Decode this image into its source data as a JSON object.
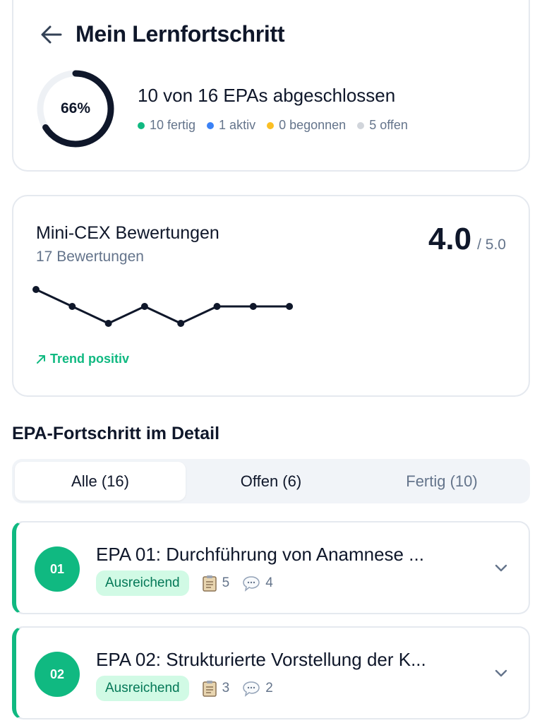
{
  "header": {
    "title": "Mein Lernfortschritt",
    "back_icon": "arrow-left-icon"
  },
  "progress": {
    "percent_label": "66%",
    "fraction": 0.66,
    "summary": "10 von 16 EPAs abgeschlossen",
    "legend": [
      {
        "label": "10 fertig",
        "color": "#10b981"
      },
      {
        "label": "1 aktiv",
        "color": "#3b82f6"
      },
      {
        "label": "0 begonnen",
        "color": "#fbbf24"
      },
      {
        "label": "5 offen",
        "color": "#d1d5db"
      }
    ]
  },
  "minicex": {
    "title": "Mini-CEX Bewertungen",
    "count": "17 Bewertungen",
    "score": "4.0",
    "score_max": "/ 5.0",
    "trend": "Trend positiv",
    "trend_icon": "arrow-up-right-icon",
    "sparkline": [
      4.5,
      4.0,
      3.5,
      4.0,
      3.5,
      4.0,
      4.0,
      4.0
    ]
  },
  "section": {
    "title": "EPA-Fortschritt im Detail"
  },
  "tabs": [
    {
      "label": "Alle (16)"
    },
    {
      "label": "Offen (6)"
    },
    {
      "label": "Fertig (10)"
    }
  ],
  "epas": [
    {
      "num": "01",
      "title": "EPA 01: Durchführung von Anamnese ...",
      "badge": "Ausreichend",
      "docs": "5",
      "comments": "4"
    },
    {
      "num": "02",
      "title": "EPA 02: Strukturierte Vorstellung der K...",
      "badge": "Ausreichend",
      "docs": "3",
      "comments": "2"
    }
  ],
  "colors": {
    "accent": "#10b981",
    "text": "#0f172a",
    "muted": "#64748b"
  }
}
